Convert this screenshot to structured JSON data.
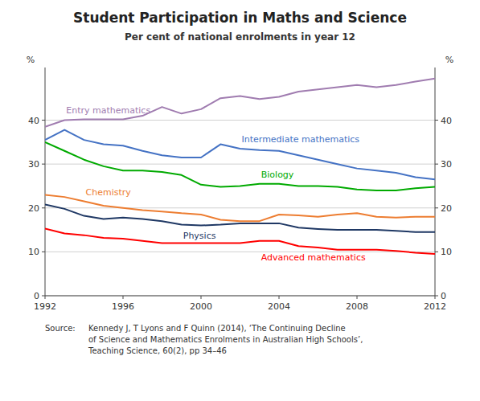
{
  "chart_data": {
    "type": "line",
    "title": "Student Participation in Maths and Science",
    "subtitle": "Per cent of national enrolments in year 12",
    "y_label": "%",
    "y2_label": "%",
    "source_label": "Source:",
    "source_body": "Kennedy J, T Lyons and F Quinn (2014), ‘The Continuing Decline\nof Science and Mathematics Enrolments in Australian High Schools’,\nTeaching Science, 60(2), pp 34–46",
    "x": [
      1992,
      1993,
      1994,
      1995,
      1996,
      1997,
      1998,
      1999,
      2000,
      2001,
      2002,
      2003,
      2004,
      2005,
      2006,
      2007,
      2008,
      2009,
      2010,
      2011,
      2012
    ],
    "series": [
      {
        "name": "Entry mathematics",
        "color": "#A07CB0",
        "values": [
          38.5,
          40.0,
          40.2,
          40.2,
          40.2,
          41.0,
          43.0,
          41.5,
          42.5,
          45.0,
          45.5,
          44.8,
          45.3,
          46.5,
          47.0,
          47.5,
          48.0,
          47.5,
          48.0,
          48.8,
          49.5
        ]
      },
      {
        "name": "Intermediate mathematics",
        "color": "#4472C4",
        "values": [
          35.5,
          37.8,
          35.5,
          34.5,
          34.2,
          33.0,
          32.0,
          31.5,
          31.5,
          34.5,
          33.5,
          33.2,
          33.0,
          32.0,
          31.0,
          30.0,
          29.0,
          28.5,
          28.0,
          27.0,
          26.5
        ]
      },
      {
        "name": "Biology",
        "color": "#00AA00",
        "values": [
          35.0,
          33.0,
          31.0,
          29.5,
          28.5,
          28.5,
          28.2,
          27.5,
          25.3,
          24.8,
          25.0,
          25.5,
          25.5,
          25.0,
          25.0,
          24.8,
          24.2,
          24.0,
          24.0,
          24.5,
          24.8
        ]
      },
      {
        "name": "Chemistry",
        "color": "#ED7D31",
        "values": [
          23.0,
          22.5,
          21.5,
          20.5,
          20.0,
          19.5,
          19.2,
          18.8,
          18.5,
          17.3,
          17.0,
          17.0,
          18.5,
          18.3,
          18.0,
          18.5,
          18.8,
          18.0,
          17.8,
          18.0,
          18.0
        ]
      },
      {
        "name": "Physics",
        "color": "#1F3864",
        "values": [
          20.8,
          19.8,
          18.2,
          17.5,
          17.8,
          17.5,
          17.0,
          16.2,
          16.0,
          16.2,
          16.5,
          16.5,
          16.5,
          15.5,
          15.2,
          15.0,
          15.0,
          15.0,
          14.8,
          14.5,
          14.5
        ]
      },
      {
        "name": "Advanced mathematics",
        "color": "#FF0000",
        "values": [
          15.3,
          14.2,
          13.8,
          13.2,
          13.0,
          12.5,
          12.0,
          12.0,
          12.0,
          12.0,
          12.0,
          12.5,
          12.5,
          11.3,
          11.0,
          10.5,
          10.5,
          10.5,
          10.2,
          9.8,
          9.5
        ]
      }
    ],
    "xlim": [
      1992,
      2012
    ],
    "xticks": [
      1992,
      1996,
      2000,
      2004,
      2008,
      2012
    ],
    "ylim": [
      0,
      52
    ],
    "yticks": [
      0,
      10,
      20,
      30,
      40
    ],
    "y2lim": [
      0,
      52
    ],
    "y2ticks": [
      0,
      10,
      20,
      30,
      40
    ],
    "grid": true
  }
}
